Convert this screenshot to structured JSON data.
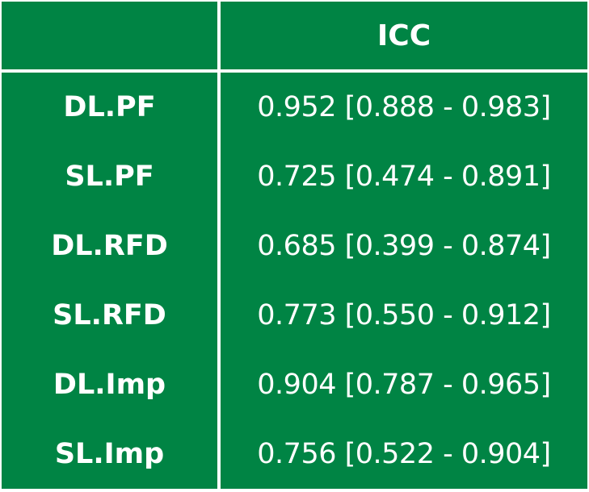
{
  "table": {
    "header": {
      "corner": "",
      "column": "ICC"
    },
    "rows": [
      {
        "label": "DL.PF",
        "value": "0.952 [0.888 - 0.983]"
      },
      {
        "label": "SL.PF",
        "value": "0.725 [0.474 - 0.891]"
      },
      {
        "label": "DL.RFD",
        "value": "0.685 [0.399 - 0.874]"
      },
      {
        "label": "SL.RFD",
        "value": "0.773 [0.550 - 0.912]"
      },
      {
        "label": "DL.Imp",
        "value": "0.904 [0.787 - 0.965]"
      },
      {
        "label": "SL.Imp",
        "value": "0.756 [0.522 - 0.904]"
      }
    ]
  },
  "colors": {
    "background": "#008444",
    "text": "#ffffff",
    "rule": "#ffffff"
  }
}
